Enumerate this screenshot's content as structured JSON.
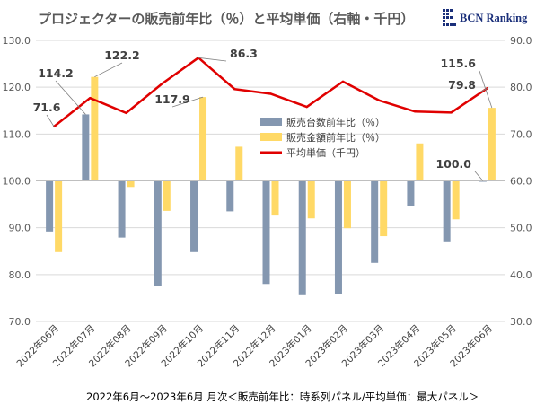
{
  "chart_data": {
    "type": "bar",
    "title": "プロジェクターの販売前年比（％）と平均単価（右軸・千円）",
    "categories": [
      "2022年06月",
      "2022年07月",
      "2022年08月",
      "2022年09月",
      "2022年10月",
      "2022年11月",
      "2022年12月",
      "2023年01月",
      "2023年02月",
      "2023年03月",
      "2023年04月",
      "2023年05月",
      "2023年06月"
    ],
    "series": [
      {
        "name": "販売台数前年比（％）",
        "kind": "bar",
        "axis": "left",
        "color": "#8497b0",
        "values": [
          89.2,
          114.2,
          87.9,
          77.5,
          84.8,
          93.5,
          78.0,
          75.6,
          75.8,
          82.5,
          94.7,
          87.1,
          100.0
        ]
      },
      {
        "name": "販売金額前年比（％）",
        "kind": "bar",
        "axis": "left",
        "color": "#ffd966",
        "values": [
          84.8,
          122.2,
          98.7,
          93.6,
          117.9,
          107.3,
          92.6,
          92.0,
          89.9,
          88.2,
          108.0,
          91.8,
          115.6
        ]
      },
      {
        "name": "平均単価（千円）",
        "kind": "line",
        "axis": "right",
        "color": "#e00000",
        "values": [
          71.6,
          77.7,
          74.5,
          80.8,
          86.3,
          79.6,
          78.6,
          75.8,
          81.2,
          77.2,
          74.8,
          74.6,
          79.8
        ]
      }
    ],
    "y_left": {
      "min": 70,
      "max": 130,
      "step": 10,
      "ticks": [
        "70.0",
        "80.0",
        "90.0",
        "100.0",
        "110.0",
        "120.0",
        "130.0"
      ]
    },
    "y_right": {
      "min": 30,
      "max": 90,
      "step": 10,
      "ticks": [
        "30.0",
        "40.0",
        "50.0",
        "60.0",
        "70.0",
        "80.0",
        "90.0"
      ]
    },
    "baseline": 100,
    "data_labels": [
      {
        "text": "71.6",
        "series": 2,
        "index": 0
      },
      {
        "text": "114.2",
        "series": 0,
        "index": 1
      },
      {
        "text": "122.2",
        "series": 1,
        "index": 1
      },
      {
        "text": "117.9",
        "series": 1,
        "index": 4
      },
      {
        "text": "86.3",
        "series": 2,
        "index": 4
      },
      {
        "text": "100.0",
        "series": 0,
        "index": 12
      },
      {
        "text": "115.6",
        "series": 1,
        "index": 12
      },
      {
        "text": "79.8",
        "series": 2,
        "index": 12
      }
    ],
    "legend_position": "center"
  },
  "branding": {
    "logo_text": "BCN Ranking"
  },
  "footer": {
    "note": "2022年6月～2023年6月 月次＜販売前年比：時系列パネル/平均単価：最大パネル＞"
  }
}
